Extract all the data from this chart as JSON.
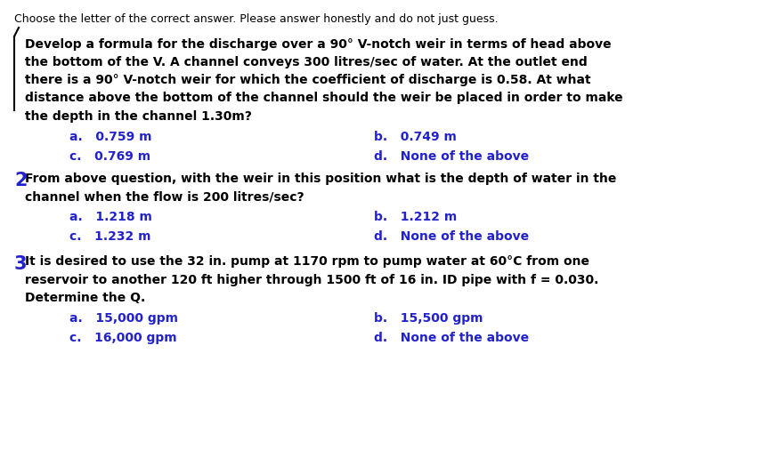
{
  "bg_color": "#ffffff",
  "text_color": "#000000",
  "blue_color": "#2222cc",
  "header": "Choose the letter of the correct answer. Please answer honestly and do not just guess.",
  "q1_body_line1": "Develop a formula for the discharge over a 90° V-notch weir in terms of head above",
  "q1_body_line2": "the bottom of the V. A channel conveys 300 litres/sec of water. At the outlet end",
  "q1_body_line3": "there is a 90° V-notch weir for which the coefficient of discharge is 0.58. At what",
  "q1_body_line4": "distance above the bottom of the channel should the weir be placed in order to make",
  "q1_body_line5": "the depth in the channel 1.30m?",
  "q1_a": "a.   0.759 m",
  "q1_b": "b.   0.749 m",
  "q1_c": "c.   0.769 m",
  "q1_d": "d.   None of the above",
  "q2_body_line1": "From above question, with the weir in this position what is the depth of water in the",
  "q2_body_line2": "channel when the flow is 200 litres/sec?",
  "q2_a": "a.   1.218 m",
  "q2_b": "b.   1.212 m",
  "q2_c": "c.   1.232 m",
  "q2_d": "d.   None of the above",
  "q3_body_line1": "It is desired to use the 32 in. pump at 1170 rpm to pump water at 60°C from one",
  "q3_body_line2": "reservoir to another 120 ft higher through 1500 ft of 16 in. ID pipe with f = 0.030.",
  "q3_body_line3": "Determine the Q.",
  "q3_a": "a.   15,000 gpm",
  "q3_b": "b.   15,500 gpm",
  "q3_c": "c.   16,000 gpm",
  "q3_d": "d.   None of the above",
  "font_size_header": 9.0,
  "font_size_body": 10.0,
  "font_size_choices": 10.0,
  "font_size_number": 15.0,
  "fig_width": 8.57,
  "fig_height": 5.15,
  "dpi": 100
}
